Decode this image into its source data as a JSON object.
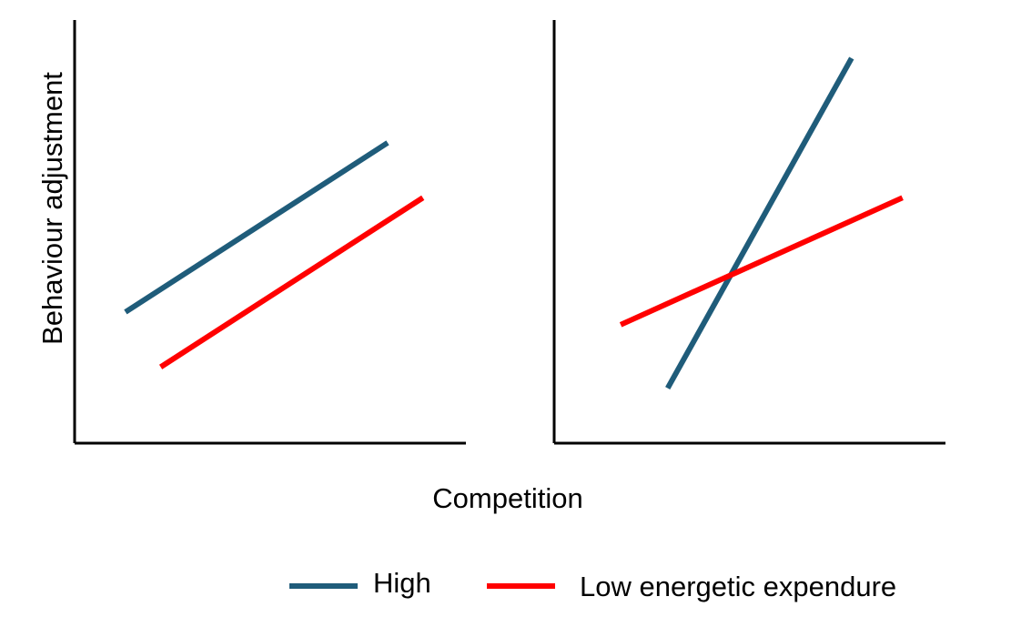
{
  "chart_data": [
    {
      "type": "line",
      "title": "",
      "xlabel": "Competition",
      "ylabel": "Behaviour adjustment",
      "xlim": [
        0,
        10
      ],
      "ylim": [
        0,
        10
      ],
      "x_ticks": false,
      "y_ticks": false,
      "grid": false,
      "series": [
        {
          "name": "High",
          "color": "#1f5c7a",
          "x": [
            1.3,
            8.0
          ],
          "y": [
            3.1,
            7.1
          ]
        },
        {
          "name": "Low energetic expendure",
          "color": "#ff0000",
          "x": [
            2.2,
            8.9
          ],
          "y": [
            1.8,
            5.8
          ]
        }
      ]
    },
    {
      "type": "line",
      "title": "",
      "xlabel": "Competition",
      "ylabel": "",
      "xlim": [
        0,
        10
      ],
      "ylim": [
        0,
        10
      ],
      "x_ticks": false,
      "y_ticks": false,
      "grid": false,
      "series": [
        {
          "name": "High",
          "color": "#1f5c7a",
          "x": [
            2.9,
            7.6
          ],
          "y": [
            1.3,
            9.1
          ]
        },
        {
          "name": "Low energetic expendure",
          "color": "#ff0000",
          "x": [
            1.7,
            8.9
          ],
          "y": [
            2.8,
            5.8
          ]
        }
      ]
    }
  ],
  "shared": {
    "ylabel": "Behaviour adjustment",
    "xlabel": "Competition"
  },
  "legend": {
    "placement": "bottom-right",
    "items": [
      {
        "label": "High",
        "color": "#1f5c7a"
      },
      {
        "label": "Low energetic expendure",
        "color": "#ff0000"
      }
    ]
  },
  "colors": {
    "axis": "#000000",
    "background": "#ffffff"
  }
}
